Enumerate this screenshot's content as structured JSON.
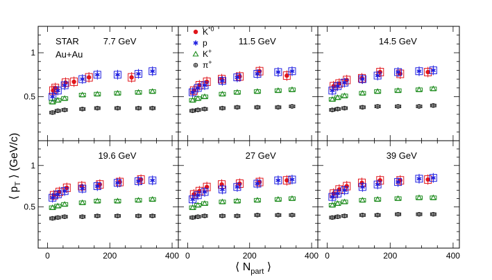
{
  "figure": {
    "ylabel_main": "⟨ p",
    "ylabel_sub": "T",
    "ylabel_rest": " ⟩  (GeV/c)",
    "xlabel_main": "⟨ N",
    "xlabel_sub": "part",
    "xlabel_rest": " ⟩",
    "experiment": "STAR",
    "system": "Au+Au"
  },
  "legend": [
    {
      "key": "kstar",
      "label": "K",
      "sup": "*0"
    },
    {
      "key": "p",
      "label": "p",
      "sup": ""
    },
    {
      "key": "kplus",
      "label": "K",
      "sup": "+"
    },
    {
      "key": "piplus",
      "label": "π",
      "sup": "+"
    }
  ],
  "colors": {
    "kstar": "#e0151b",
    "p": "#1f1fe0",
    "kplus": "#1a8a1a",
    "piplus": "#222222"
  },
  "chart_data": [
    {
      "type": "scatter",
      "title": "7.7 GeV",
      "xlim": [
        -30,
        420
      ],
      "ylim": [
        0,
        1.3
      ],
      "xticks": [
        "0",
        "200",
        "400"
      ],
      "yticks": [
        "0.5",
        "1"
      ],
      "series": [
        {
          "name": "K*0",
          "x": [
            18,
            25,
            58,
            85,
            133,
            270
          ],
          "y": [
            0.57,
            0.6,
            0.66,
            0.67,
            0.72,
            0.72
          ]
        },
        {
          "name": "p",
          "x": [
            16,
            33,
            55,
            112,
            160,
            225,
            292,
            337
          ],
          "y": [
            0.5,
            0.57,
            0.63,
            0.7,
            0.75,
            0.75,
            0.76,
            0.79
          ]
        },
        {
          "name": "K+",
          "x": [
            16,
            33,
            55,
            112,
            160,
            225,
            292,
            337
          ],
          "y": [
            0.44,
            0.46,
            0.48,
            0.52,
            0.53,
            0.54,
            0.55,
            0.56
          ]
        },
        {
          "name": "pi+",
          "x": [
            16,
            33,
            55,
            112,
            160,
            225,
            292,
            337
          ],
          "y": [
            0.32,
            0.34,
            0.35,
            0.36,
            0.37,
            0.37,
            0.37,
            0.37
          ]
        }
      ]
    },
    {
      "type": "scatter",
      "title": "11.5 GeV",
      "xlim": [
        -30,
        420
      ],
      "ylim": [
        0,
        1.3
      ],
      "xticks": [
        "0",
        "200",
        "400"
      ],
      "yticks": [
        "0.5",
        "1"
      ],
      "series": [
        {
          "name": "K*0",
          "x": [
            20,
            38,
            62,
            110,
            168,
            232,
            320
          ],
          "y": [
            0.57,
            0.63,
            0.67,
            0.7,
            0.73,
            0.79,
            0.74
          ]
        },
        {
          "name": "p",
          "x": [
            16,
            33,
            55,
            112,
            160,
            225,
            292,
            337
          ],
          "y": [
            0.55,
            0.6,
            0.63,
            0.68,
            0.72,
            0.76,
            0.78,
            0.79
          ]
        },
        {
          "name": "K+",
          "x": [
            16,
            33,
            55,
            112,
            160,
            225,
            292,
            337
          ],
          "y": [
            0.46,
            0.48,
            0.5,
            0.53,
            0.55,
            0.56,
            0.57,
            0.58
          ]
        },
        {
          "name": "pi+",
          "x": [
            16,
            33,
            55,
            112,
            160,
            225,
            292,
            337
          ],
          "y": [
            0.34,
            0.35,
            0.36,
            0.37,
            0.38,
            0.38,
            0.38,
            0.39
          ]
        }
      ]
    },
    {
      "type": "scatter",
      "title": "14.5 GeV",
      "xlim": [
        -30,
        420
      ],
      "ylim": [
        0,
        1.3
      ],
      "xticks": [
        "0",
        "200",
        "400"
      ],
      "yticks": [
        "0.5",
        "1"
      ],
      "series": [
        {
          "name": "K*0",
          "x": [
            20,
            38,
            62,
            110,
            168,
            232,
            320
          ],
          "y": [
            0.62,
            0.65,
            0.69,
            0.71,
            0.78,
            0.76,
            0.78
          ]
        },
        {
          "name": "p",
          "x": [
            16,
            33,
            55,
            112,
            160,
            225,
            292,
            337
          ],
          "y": [
            0.57,
            0.62,
            0.66,
            0.7,
            0.74,
            0.78,
            0.79,
            0.8
          ]
        },
        {
          "name": "K+",
          "x": [
            16,
            33,
            55,
            112,
            160,
            225,
            292,
            337
          ],
          "y": [
            0.47,
            0.49,
            0.51,
            0.54,
            0.56,
            0.57,
            0.58,
            0.59
          ]
        },
        {
          "name": "pi+",
          "x": [
            16,
            33,
            55,
            112,
            160,
            225,
            292,
            337
          ],
          "y": [
            0.35,
            0.36,
            0.37,
            0.38,
            0.39,
            0.39,
            0.39,
            0.4
          ]
        }
      ]
    },
    {
      "type": "scatter",
      "title": "19.6 GeV",
      "xlim": [
        -30,
        420
      ],
      "ylim": [
        0,
        1.3
      ],
      "xticks": [
        "0",
        "200",
        "400"
      ],
      "yticks": [
        "0.5",
        "1"
      ],
      "series": [
        {
          "name": "K*0",
          "x": [
            20,
            38,
            62,
            110,
            168,
            232,
            300
          ],
          "y": [
            0.64,
            0.68,
            0.73,
            0.75,
            0.77,
            0.8,
            0.83
          ]
        },
        {
          "name": "p",
          "x": [
            16,
            33,
            55,
            112,
            160,
            225,
            292,
            337
          ],
          "y": [
            0.61,
            0.65,
            0.69,
            0.72,
            0.75,
            0.79,
            0.81,
            0.82
          ]
        },
        {
          "name": "K+",
          "x": [
            16,
            33,
            55,
            112,
            160,
            225,
            292,
            337
          ],
          "y": [
            0.49,
            0.51,
            0.53,
            0.55,
            0.57,
            0.57,
            0.58,
            0.59
          ]
        },
        {
          "name": "pi+",
          "x": [
            16,
            33,
            55,
            112,
            160,
            225,
            292,
            337
          ],
          "y": [
            0.36,
            0.37,
            0.38,
            0.38,
            0.39,
            0.39,
            0.39,
            0.39
          ]
        }
      ]
    },
    {
      "type": "scatter",
      "title": "27 GeV",
      "xlim": [
        -30,
        420
      ],
      "ylim": [
        0,
        1.3
      ],
      "xticks": [
        "0",
        "200",
        "400"
      ],
      "yticks": [
        "0.5",
        "1"
      ],
      "series": [
        {
          "name": "K*0",
          "x": [
            20,
            38,
            62,
            110,
            168,
            232,
            320
          ],
          "y": [
            0.65,
            0.69,
            0.74,
            0.77,
            0.78,
            0.8,
            0.82
          ]
        },
        {
          "name": "p",
          "x": [
            16,
            33,
            55,
            112,
            160,
            225,
            292,
            337
          ],
          "y": [
            0.59,
            0.64,
            0.68,
            0.71,
            0.74,
            0.78,
            0.82,
            0.83
          ]
        },
        {
          "name": "K+",
          "x": [
            16,
            33,
            55,
            112,
            160,
            225,
            292,
            337
          ],
          "y": [
            0.49,
            0.52,
            0.54,
            0.56,
            0.57,
            0.58,
            0.59,
            0.6
          ]
        },
        {
          "name": "pi+",
          "x": [
            16,
            33,
            55,
            112,
            160,
            225,
            292,
            337
          ],
          "y": [
            0.37,
            0.38,
            0.39,
            0.39,
            0.39,
            0.4,
            0.4,
            0.4
          ]
        }
      ]
    },
    {
      "type": "scatter",
      "title": "39 GeV",
      "xlim": [
        -30,
        420
      ],
      "ylim": [
        0,
        1.3
      ],
      "xticks": [
        "0",
        "200",
        "400"
      ],
      "yticks": [
        "0.5",
        "1"
      ],
      "series": [
        {
          "name": "K*0",
          "x": [
            20,
            38,
            62,
            110,
            168,
            232,
            320
          ],
          "y": [
            0.66,
            0.71,
            0.75,
            0.79,
            0.82,
            0.82,
            0.83
          ]
        },
        {
          "name": "p",
          "x": [
            16,
            33,
            55,
            112,
            160,
            225,
            292,
            337
          ],
          "y": [
            0.62,
            0.66,
            0.7,
            0.74,
            0.77,
            0.8,
            0.84,
            0.85
          ]
        },
        {
          "name": "K+",
          "x": [
            16,
            33,
            55,
            112,
            160,
            225,
            292,
            337
          ],
          "y": [
            0.52,
            0.54,
            0.56,
            0.58,
            0.59,
            0.6,
            0.61,
            0.61
          ]
        },
        {
          "name": "pi+",
          "x": [
            16,
            33,
            55,
            112,
            160,
            225,
            292,
            337
          ],
          "y": [
            0.37,
            0.38,
            0.39,
            0.4,
            0.4,
            0.41,
            0.41,
            0.41
          ]
        }
      ]
    }
  ]
}
